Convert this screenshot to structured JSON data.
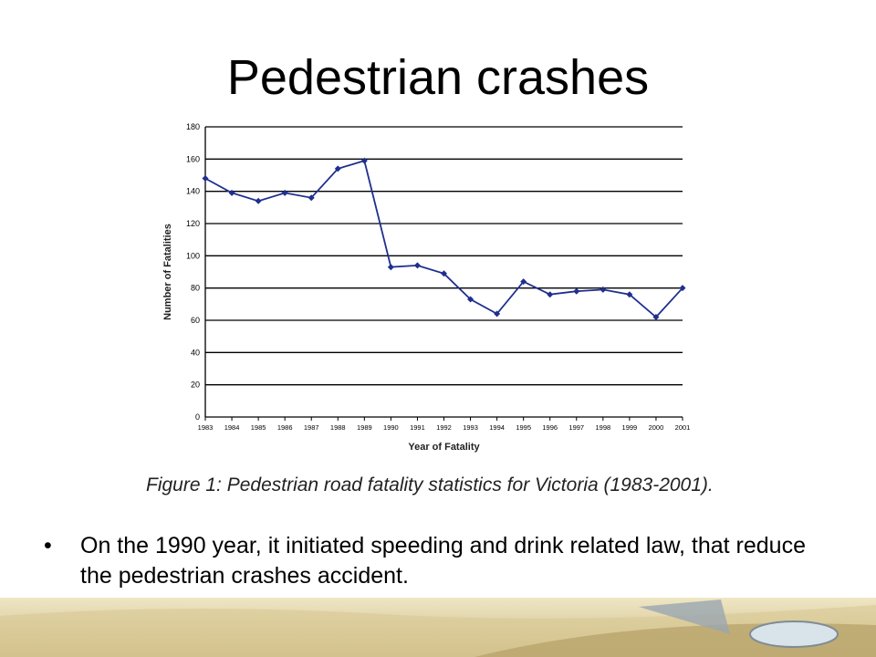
{
  "slide": {
    "title": "Pedestrian crashes",
    "caption": "Figure 1:  Pedestrian road fatality statistics for Victoria (1983-2001).",
    "bullet_symbol": "•",
    "bullet": "On the 1990 year, it initiated speeding and drink related law, that reduce the pedestrian crashes accident."
  },
  "colors": {
    "line": "#1f2f8f",
    "grid": "#000000",
    "sand_light": "#e6dcb0",
    "sand_dark": "#bfae78"
  },
  "chart_data": {
    "type": "line",
    "title": "",
    "xlabel": "Year of Fatality",
    "ylabel": "Number of Fatalities",
    "categories": [
      "1983",
      "1984",
      "1985",
      "1986",
      "1987",
      "1988",
      "1989",
      "1990",
      "1991",
      "1992",
      "1993",
      "1994",
      "1995",
      "1996",
      "1997",
      "1998",
      "1999",
      "2000",
      "2001"
    ],
    "series": [
      {
        "values": [
          148,
          139,
          134,
          139,
          136,
          154,
          159,
          93,
          94,
          89,
          73,
          64,
          84,
          76,
          78,
          79,
          76,
          62,
          80
        ]
      }
    ],
    "ylim": [
      0,
      180
    ],
    "yticks": [
      "0",
      "20",
      "40",
      "60",
      "80",
      "100",
      "120",
      "140",
      "160",
      "180"
    ],
    "grid": true
  }
}
